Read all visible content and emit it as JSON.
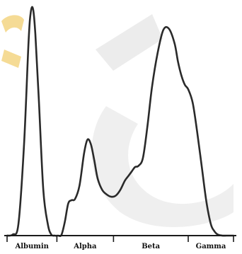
{
  "chart_data": {
    "type": "line",
    "title": "",
    "xlabel": "",
    "ylabel": "",
    "grid": false,
    "legend": "none",
    "line_color": "#2a2a2a",
    "background_marks": {
      "watermark_color": "#dcdcdc",
      "logo_color": "#f3d27a"
    },
    "xlim": [
      0,
      100
    ],
    "ylim": [
      0,
      100
    ],
    "series": [
      {
        "x": [
          0,
          2.5,
          5,
          7.5,
          9.5,
          10.5,
          11.5,
          12.5,
          14,
          16,
          18,
          19.5,
          21,
          22.5,
          24,
          25.5,
          27,
          28.5,
          30,
          32,
          34,
          35.5,
          37,
          38.5,
          40,
          42,
          44,
          46,
          48,
          50,
          52,
          53.5,
          55,
          56.5,
          58,
          60,
          62,
          64,
          66.5,
          69,
          71.5,
          74,
          75.5,
          77,
          78.5,
          80,
          82,
          84,
          86,
          88,
          90,
          91.5,
          93,
          95,
          97,
          100
        ],
        "y": [
          0,
          0.5,
          5,
          40,
          85,
          98,
          99,
          88,
          60,
          20,
          5,
          0.5,
          0,
          0,
          0.3,
          6,
          14,
          15.5,
          16,
          22,
          36,
          42,
          40,
          33,
          25,
          20,
          18,
          17,
          17.5,
          20,
          24,
          26,
          28,
          30,
          30.5,
          34,
          48,
          65,
          80,
          90,
          90.5,
          84,
          76,
          70,
          66,
          64,
          58,
          45,
          30,
          15,
          5,
          2,
          0.5,
          0,
          0,
          0
        ]
      }
    ],
    "categories": [
      {
        "label": "Albumin",
        "start": 0,
        "end": 22
      },
      {
        "label": "Alpha",
        "start": 22,
        "end": 47
      },
      {
        "label": "Beta",
        "start": 47,
        "end": 80
      },
      {
        "label": "Gamma",
        "start": 80,
        "end": 100
      }
    ]
  }
}
